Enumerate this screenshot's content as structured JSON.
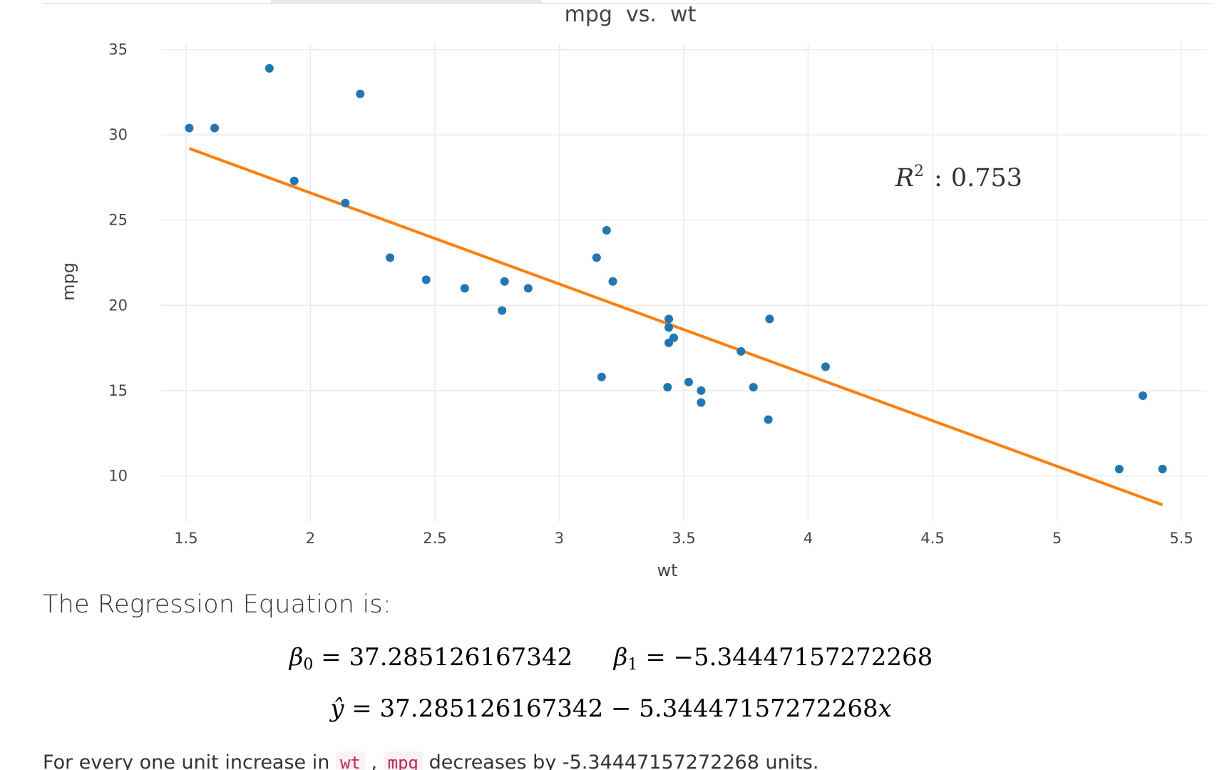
{
  "chart_data": {
    "type": "scatter",
    "title": "mpg  vs.  wt",
    "xlabel": "wt",
    "ylabel": "mpg",
    "xlim": [
      1.4,
      5.6
    ],
    "ylim": [
      7.3,
      35.4
    ],
    "xticks": [
      1.5,
      2,
      2.5,
      3,
      3.5,
      4,
      4.5,
      5,
      5.5
    ],
    "xtick_labels": [
      "1.5",
      "2",
      "2.5",
      "3",
      "3.5",
      "4",
      "4.5",
      "5",
      "5.5"
    ],
    "yticks": [
      10,
      15,
      20,
      25,
      30,
      35
    ],
    "ytick_labels": [
      "10",
      "15",
      "20",
      "25",
      "30",
      "35"
    ],
    "grid": true,
    "legend": "none",
    "points_color": "#1f77b4",
    "line_color": "#ff7f0e",
    "points": [
      [
        2.62,
        21.0
      ],
      [
        2.875,
        21.0
      ],
      [
        2.32,
        22.8
      ],
      [
        3.215,
        21.4
      ],
      [
        3.44,
        18.7
      ],
      [
        3.46,
        18.1
      ],
      [
        3.57,
        14.3
      ],
      [
        3.19,
        24.4
      ],
      [
        3.15,
        22.8
      ],
      [
        3.44,
        19.2
      ],
      [
        3.44,
        17.8
      ],
      [
        4.07,
        16.4
      ],
      [
        3.73,
        17.3
      ],
      [
        3.78,
        15.2
      ],
      [
        5.25,
        10.4
      ],
      [
        5.424,
        10.4
      ],
      [
        5.345,
        14.7
      ],
      [
        2.2,
        32.4
      ],
      [
        1.615,
        30.4
      ],
      [
        1.835,
        33.9
      ],
      [
        2.465,
        21.5
      ],
      [
        3.52,
        15.5
      ],
      [
        3.435,
        15.2
      ],
      [
        3.84,
        13.3
      ],
      [
        3.845,
        19.2
      ],
      [
        1.935,
        27.3
      ],
      [
        2.14,
        26.0
      ],
      [
        1.513,
        30.4
      ],
      [
        3.17,
        15.8
      ],
      [
        2.77,
        19.7
      ],
      [
        3.57,
        15.0
      ],
      [
        2.78,
        21.4
      ]
    ],
    "fit_line": {
      "x": [
        1.513,
        5.424
      ],
      "y": [
        29.199,
        8.297
      ]
    },
    "annotation": {
      "symbol": "R",
      "exponent": "2",
      "separator": ":",
      "value": "0.753",
      "x": 4.35,
      "y": 27.0
    }
  },
  "text": {
    "heading": "The Regression Equation is:",
    "beta0_symbol": "β",
    "beta0_sub": "0",
    "beta0_value": "= 37.285126167342",
    "beta1_symbol": "β",
    "beta1_sub": "1",
    "beta1_value": "= −5.34447157272268",
    "yhat_symbol": "ŷ",
    "yhat_expr": "= 37.285126167342 − 5.34447157272268",
    "yhat_var": "x",
    "sentence_part1": "For every one unit increase in",
    "var_x": "wt",
    "sentence_sep": ",",
    "var_y": "mpg",
    "sentence_part2": "decreases by -5.34447157272268 units."
  }
}
